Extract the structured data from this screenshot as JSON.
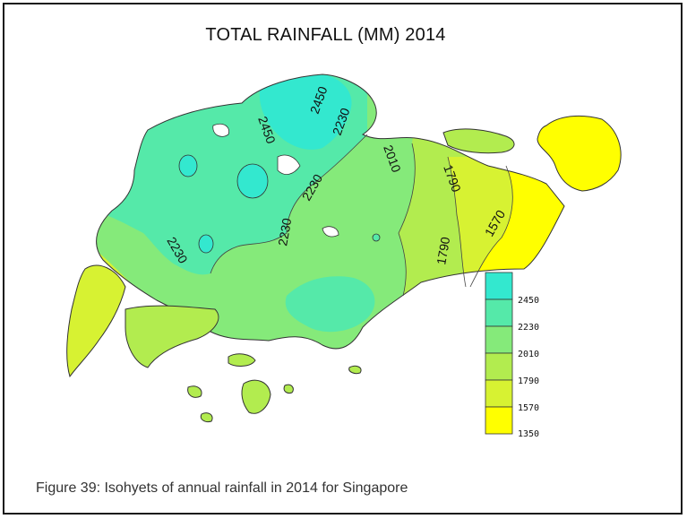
{
  "map": {
    "title": "TOTAL RAINFALL (MM) 2014",
    "caption": "Figure 39: Isohyets of annual rainfall in 2014 for Singapore"
  },
  "contour_labels": [
    "2450",
    "2450",
    "2230",
    "2230",
    "2230",
    "2230",
    "2010",
    "1790",
    "1790",
    "1570"
  ],
  "legend": {
    "levels": [
      "2450",
      "2230",
      "2010",
      "1790",
      "1570",
      "1350"
    ],
    "colors": [
      "#33e8cf",
      "#55e9a9",
      "#85ea7a",
      "#b2ec4f",
      "#d7f232",
      "#ffff00"
    ]
  },
  "colors": {
    "band_2450": "#33e8cf",
    "band_2230": "#55e9a9",
    "band_2010": "#85ea7a",
    "band_1790": "#b2ec4f",
    "band_1570": "#d7f232",
    "band_1350": "#ffff00",
    "outline": "#333333"
  }
}
